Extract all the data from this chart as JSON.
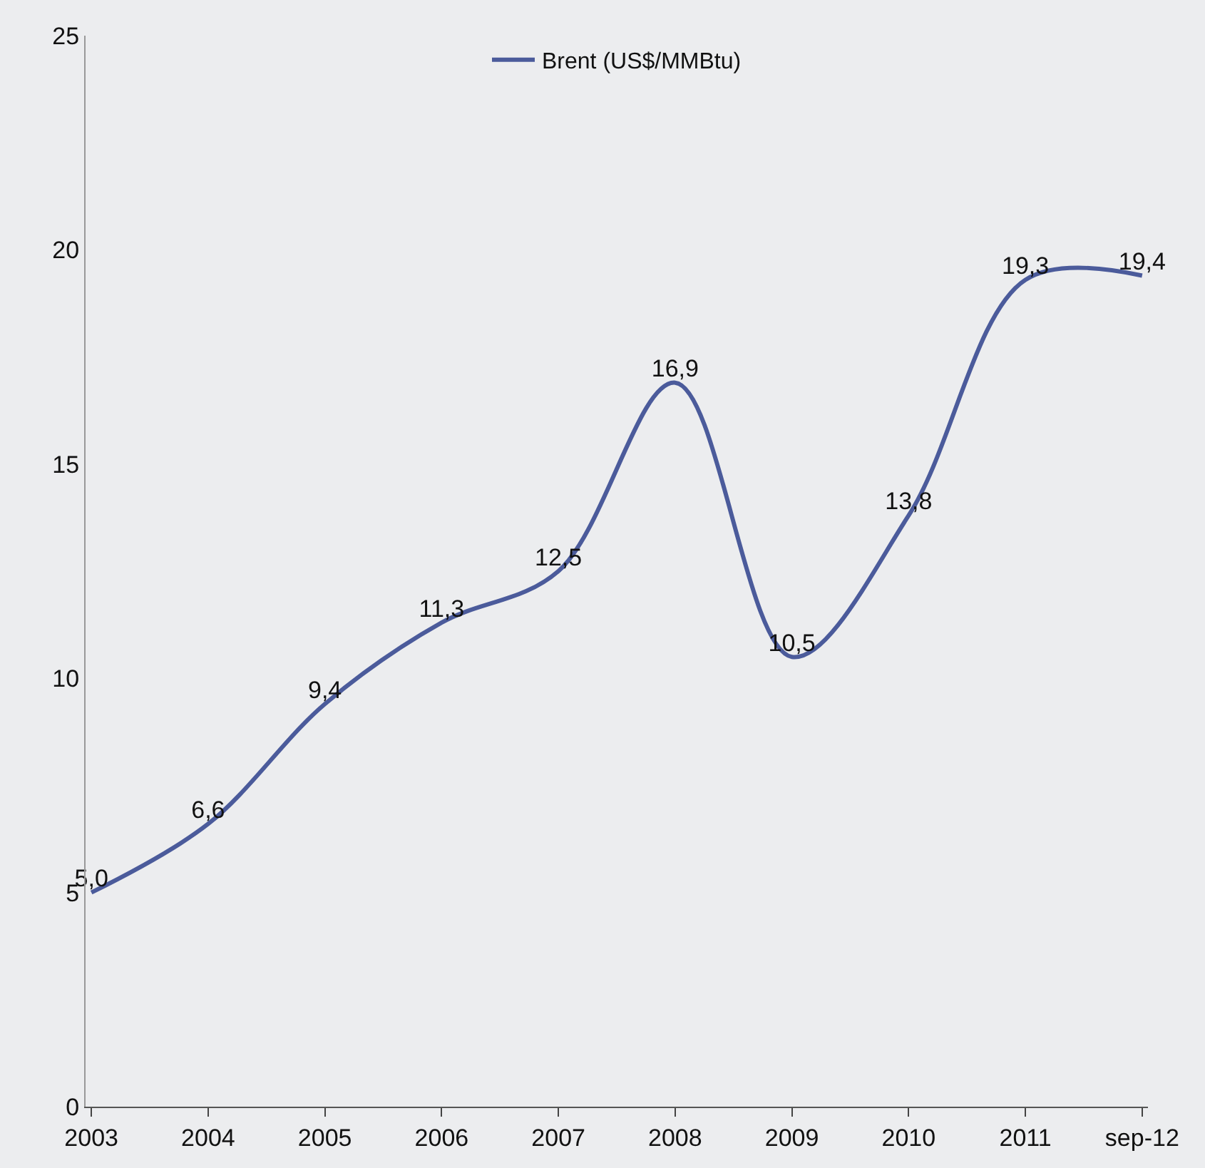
{
  "chart_data": {
    "type": "line",
    "categories": [
      "2003",
      "2004",
      "2005",
      "2006",
      "2007",
      "2008",
      "2009",
      "2010",
      "2011",
      "sep-12"
    ],
    "series": [
      {
        "name": "Brent (US$/MMBtu)",
        "color": "#4b5b9b",
        "values": [
          5.0,
          6.6,
          9.4,
          11.3,
          12.5,
          16.9,
          10.5,
          13.8,
          19.3,
          19.4
        ],
        "value_labels": [
          "5,0",
          "6,6",
          "9,4",
          "11,3",
          "12,5",
          "16,9",
          "10,5",
          "13,8",
          "19,3",
          "19,4"
        ]
      }
    ],
    "ylim": [
      0,
      25
    ],
    "yticks": [
      0,
      5,
      10,
      15,
      20,
      25
    ],
    "grid": false,
    "legend": "top",
    "marker": "none",
    "line_style": "solid"
  }
}
